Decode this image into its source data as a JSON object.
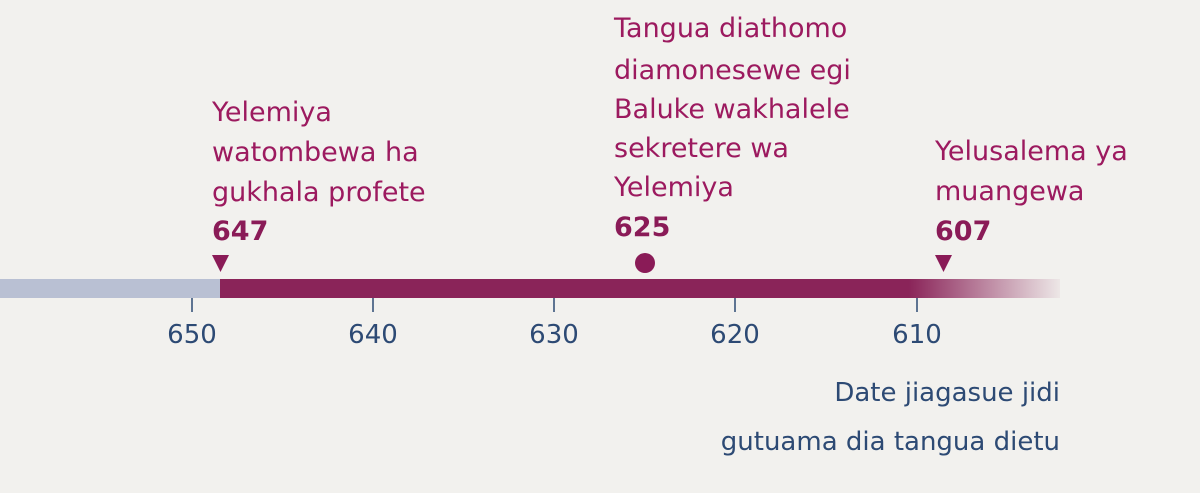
{
  "events": [
    {
      "lines": [
        "Yelemiya",
        "watombewa ha",
        "gukhala profete"
      ],
      "year": 647
    },
    {
      "lines": [
        "Tangua diathomo",
        "diamonesewe egi",
        "Baluke wakhalele",
        "sekretere wa",
        "Yelemiya"
      ],
      "year": 625
    },
    {
      "lines": [
        "Yelusalema ya",
        "muangewa"
      ],
      "year": 607
    }
  ],
  "axis": {
    "ticks": [
      650,
      640,
      630,
      620,
      610
    ]
  },
  "note": [
    "Date jiagasue jidi",
    "gutuama dia tangua dietu"
  ]
}
